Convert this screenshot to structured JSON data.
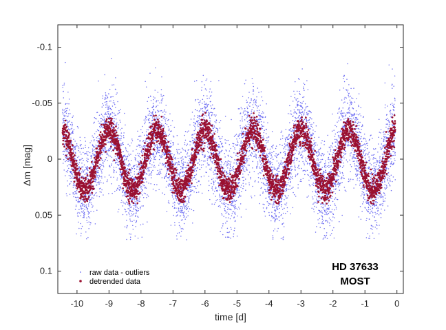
{
  "chart_data": {
    "type": "scatter",
    "xlabel": "time [d]",
    "ylabel": "Δm  [mag]",
    "xlim": [
      -10.6,
      0.2
    ],
    "ylim": [
      0.12,
      -0.12
    ],
    "y_inverted": true,
    "xticks": [
      -10,
      -9,
      -8,
      -7,
      -6,
      -5,
      -4,
      -3,
      -2,
      -1,
      0
    ],
    "xtick_labels": [
      "-10",
      "-9",
      "-8",
      "-7",
      "-6",
      "-5",
      "-4",
      "-3",
      "-2",
      "-1",
      "0"
    ],
    "yticks": [
      -0.1,
      -0.05,
      0,
      0.05,
      0.1
    ],
    "ytick_labels": [
      "-0.1",
      "-0.05",
      "0",
      "0.05",
      "0.1"
    ],
    "grid": false,
    "legend_position": "bottom-left",
    "annotations": [
      "HD 37633",
      "MOST"
    ],
    "observation_range": [
      -10.45,
      -0.05
    ],
    "period_d": 1.5,
    "maxima_times": [
      -9.2,
      -7.7,
      -6.0,
      -4.5,
      -3.0,
      -1.4
    ],
    "series": [
      {
        "name": "raw data - outliers",
        "color": "#6a6af2",
        "marker": "small-dot",
        "n_points": 7000,
        "x_range": [
          -10.45,
          -0.05
        ],
        "y_range": [
          -0.105,
          0.072
        ],
        "scatter_sigma_mag": 0.02,
        "model": "sinusoid",
        "mean_mag": 0.001,
        "amplitude_mag": 0.027,
        "period_d": 1.5,
        "phase_zero_at_max_d": -3.0
      },
      {
        "name": "detrended data",
        "color": "#9a1030",
        "marker": "dot",
        "n_points": 3600,
        "x_range": [
          -10.45,
          -0.05
        ],
        "y_range": [
          -0.06,
          0.04
        ],
        "scatter_sigma_mag": 0.006,
        "model": "sinusoid",
        "mean_mag": 0.001,
        "amplitude_mag": 0.027,
        "period_d": 1.5,
        "phase_zero_at_max_d": -3.0
      }
    ]
  }
}
